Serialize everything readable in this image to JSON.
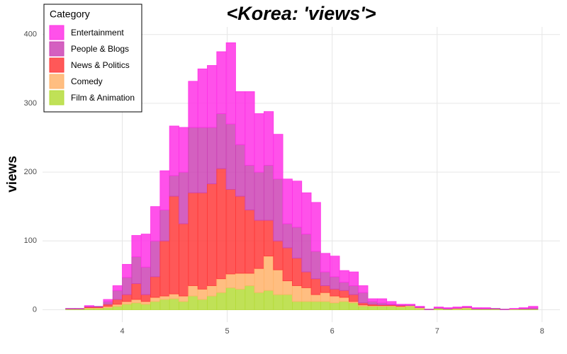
{
  "chart_data": {
    "type": "histogram",
    "title": "<Korea: 'views'>",
    "ylabel": "views",
    "legend_title": "Category",
    "legend_position": "top-left",
    "grid": true,
    "bins": [
      3.46,
      3.55,
      3.64,
      3.73,
      3.82,
      3.91,
      4.0,
      4.09,
      4.18,
      4.27,
      4.36,
      4.45,
      4.54,
      4.63,
      4.72,
      4.81,
      4.9,
      4.99,
      5.08,
      5.17,
      5.26,
      5.35,
      5.44,
      5.53,
      5.62,
      5.71,
      5.8,
      5.89,
      5.98,
      6.07,
      6.16,
      6.25,
      6.34,
      6.43,
      6.52,
      6.61,
      6.7,
      6.79,
      6.88,
      6.97,
      7.06,
      7.15,
      7.24,
      7.33,
      7.42,
      7.51,
      7.6,
      7.69,
      7.78,
      7.87,
      7.96
    ],
    "xlim": [
      3.24,
      8.17
    ],
    "xticks": [
      4,
      5,
      6,
      7,
      8
    ],
    "ylim": [
      -18,
      411
    ],
    "yticks": [
      0,
      100,
      200,
      300,
      400
    ],
    "series": [
      {
        "name": "Entertainment",
        "color": "#ff33e6",
        "values": [
          0,
          0,
          1,
          0,
          3,
          7,
          19,
          31,
          48,
          50,
          57,
          72,
          65,
          67,
          85,
          90,
          90,
          118,
          77,
          107,
          85,
          78,
          65,
          65,
          67,
          60,
          71,
          27,
          30,
          17,
          20,
          10,
          4,
          6,
          4,
          1,
          1,
          1,
          0,
          1,
          1,
          1,
          1,
          1,
          1,
          0,
          0,
          1,
          1,
          2
        ]
      },
      {
        "name": "People & Blogs",
        "color": "#cc44b5",
        "values": [
          1,
          1,
          1,
          1,
          4,
          13,
          25,
          39,
          40,
          52,
          45,
          30,
          75,
          95,
          95,
          82,
          80,
          95,
          75,
          65,
          70,
          80,
          90,
          35,
          45,
          55,
          40,
          20,
          18,
          12,
          13,
          15,
          4,
          3,
          1,
          1,
          1,
          1,
          1,
          1,
          1,
          1,
          1,
          1,
          1,
          1,
          1,
          0,
          1,
          2
        ]
      },
      {
        "name": "News & Politics",
        "color": "#ff3b3b",
        "values": [
          0,
          0,
          1,
          1,
          3,
          7,
          10,
          23,
          10,
          30,
          80,
          142,
          105,
          135,
          140,
          148,
          160,
          123,
          112,
          92,
          70,
          52,
          42,
          48,
          40,
          23,
          23,
          10,
          10,
          10,
          10,
          3,
          2,
          1,
          1,
          1,
          0,
          0,
          0,
          0,
          0,
          0,
          0,
          0,
          0,
          0,
          0,
          0,
          0,
          0
        ]
      },
      {
        "name": "Comedy",
        "color": "#ffb36b",
        "values": [
          0,
          0,
          1,
          1,
          2,
          3,
          4,
          5,
          4,
          6,
          5,
          7,
          8,
          15,
          15,
          15,
          20,
          20,
          23,
          18,
          35,
          50,
          36,
          20,
          23,
          20,
          10,
          13,
          10,
          6,
          2,
          2,
          1,
          1,
          1,
          1,
          1,
          1,
          0,
          0,
          0,
          1,
          1,
          0,
          0,
          0,
          0,
          0,
          0,
          0
        ]
      },
      {
        "name": "Film & Animation",
        "color": "#b5dc3a",
        "values": [
          1,
          1,
          2,
          2,
          3,
          5,
          8,
          10,
          8,
          12,
          15,
          16,
          12,
          20,
          15,
          20,
          25,
          32,
          30,
          35,
          25,
          28,
          22,
          22,
          12,
          12,
          12,
          12,
          10,
          12,
          10,
          5,
          5,
          5,
          5,
          4,
          5,
          2,
          0,
          2,
          1,
          1,
          2,
          1,
          1,
          1,
          0,
          1,
          1,
          1
        ]
      }
    ]
  }
}
